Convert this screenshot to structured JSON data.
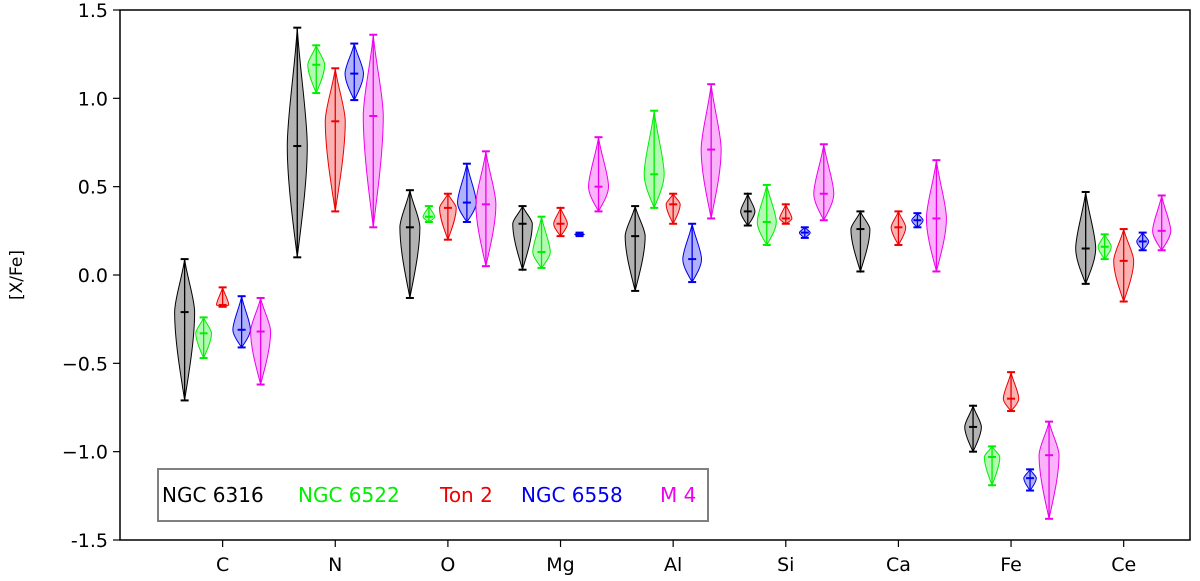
{
  "chart_data": {
    "type": "violin",
    "ylabel": "[X/Fe]",
    "xlabel": "",
    "ylim": [
      -1.5,
      1.5
    ],
    "yticks": [
      1.5,
      1.0,
      0.5,
      0.0,
      -0.5,
      -1.0,
      -1.5
    ],
    "ytick_labels": [
      "1.5",
      "1.0",
      "0.5",
      "0.0",
      "−0.5",
      "−1.0",
      "-1.5"
    ],
    "categories": [
      "C",
      "N",
      "O",
      "Mg",
      "Al",
      "Si",
      "Ca",
      "Fe",
      "Ce"
    ],
    "legend_position": "lower-left",
    "series": [
      {
        "name": "NGC 6316",
        "color": "#000000",
        "min": [
          -0.71,
          0.1,
          -0.13,
          0.03,
          -0.09,
          0.28,
          0.02,
          -1.0,
          -0.05
        ],
        "median": [
          -0.21,
          0.73,
          0.27,
          0.29,
          0.22,
          0.36,
          0.26,
          -0.86,
          0.15
        ],
        "max": [
          0.09,
          1.4,
          0.48,
          0.39,
          0.39,
          0.46,
          0.36,
          -0.74,
          0.47
        ]
      },
      {
        "name": "NGC 6522",
        "color": "#00ee00",
        "min": [
          -0.47,
          1.03,
          0.3,
          0.04,
          0.38,
          0.17,
          null,
          -1.19,
          0.09
        ],
        "median": [
          -0.33,
          1.19,
          0.33,
          0.13,
          0.57,
          0.3,
          null,
          -1.03,
          0.16
        ],
        "max": [
          -0.24,
          1.3,
          0.39,
          0.33,
          0.93,
          0.51,
          null,
          -0.97,
          0.23
        ]
      },
      {
        "name": "Ton 2",
        "color": "#ee0000",
        "min": [
          -0.18,
          0.36,
          0.2,
          0.22,
          0.29,
          0.29,
          0.17,
          -0.77,
          -0.15
        ],
        "median": [
          -0.17,
          0.87,
          0.38,
          0.29,
          0.4,
          0.32,
          0.27,
          -0.7,
          0.08
        ],
        "max": [
          -0.07,
          1.17,
          0.46,
          0.38,
          0.46,
          0.4,
          0.36,
          -0.55,
          0.26
        ]
      },
      {
        "name": "NGC 6558",
        "color": "#0000ee",
        "min": [
          -0.41,
          0.99,
          0.3,
          0.22,
          -0.04,
          0.21,
          0.27,
          -1.22,
          0.14
        ],
        "median": [
          -0.31,
          1.14,
          0.41,
          0.23,
          0.09,
          0.24,
          0.31,
          -1.15,
          0.19
        ],
        "max": [
          -0.12,
          1.31,
          0.63,
          0.24,
          0.29,
          0.27,
          0.35,
          -1.1,
          0.24
        ]
      },
      {
        "name": "M 4",
        "color": "#ee00ee",
        "min": [
          -0.62,
          0.27,
          0.05,
          0.36,
          0.32,
          0.31,
          0.02,
          -1.38,
          0.14
        ],
        "median": [
          -0.32,
          0.9,
          0.4,
          0.5,
          0.71,
          0.46,
          0.32,
          -1.02,
          0.25
        ],
        "max": [
          -0.13,
          1.36,
          0.7,
          0.78,
          1.08,
          0.74,
          0.65,
          -0.83,
          0.45
        ]
      }
    ]
  }
}
